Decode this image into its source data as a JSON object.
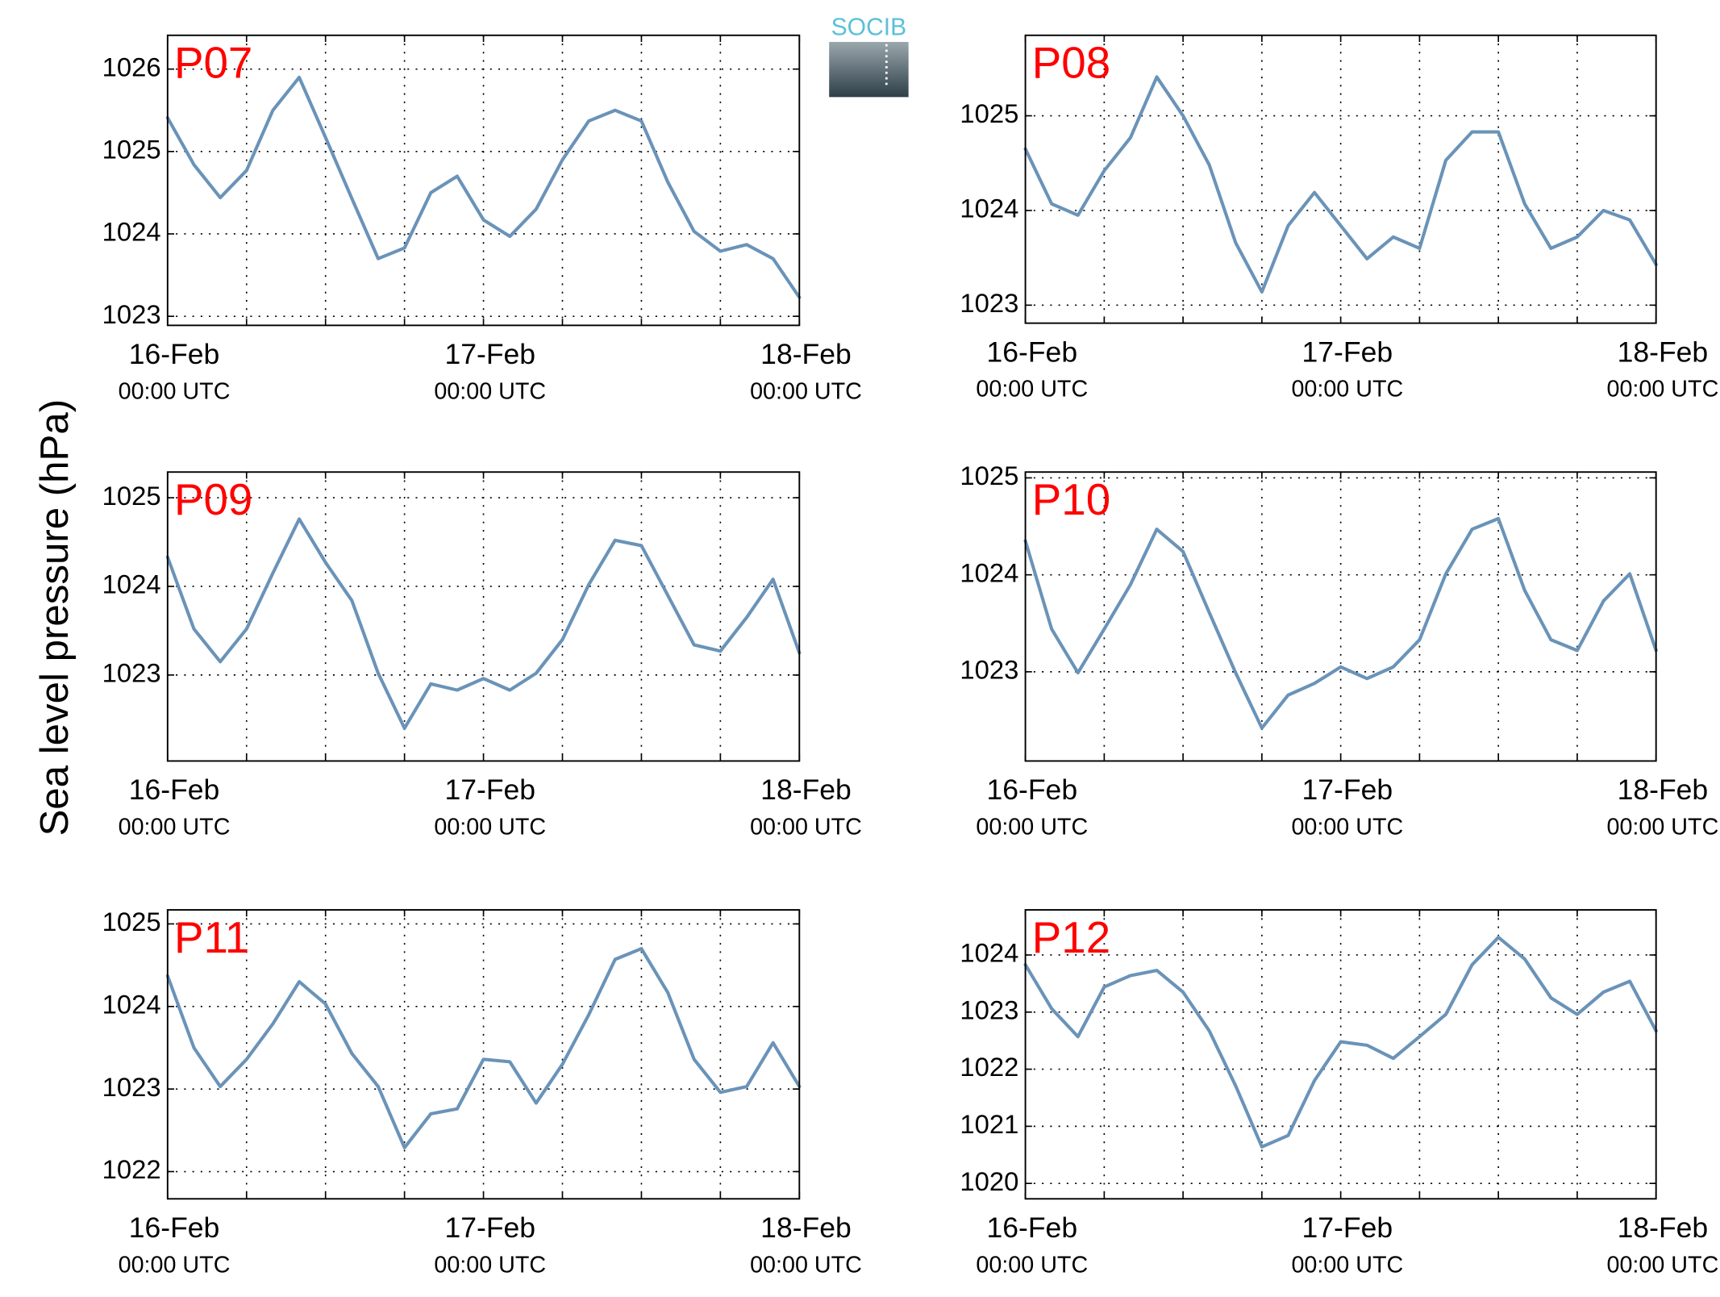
{
  "axis_label": "Sea level pressure (hPa)",
  "logo": "SOCIB",
  "chart_data": [
    {
      "type": "line",
      "title": "P07",
      "x": [
        0,
        2,
        4,
        6,
        8,
        10,
        12,
        14,
        16,
        18,
        20,
        22,
        24,
        26,
        28,
        30,
        32,
        34,
        36,
        38,
        40,
        42,
        44,
        46,
        48
      ],
      "series": [
        {
          "color": "#6a93b8",
          "values": [
            1025.41,
            1024.84,
            1024.44,
            1024.77,
            1025.5,
            1025.9,
            1025.17,
            1024.43,
            1023.7,
            1023.83,
            1024.5,
            1024.7,
            1024.17,
            1023.97,
            1024.3,
            1024.9,
            1025.37,
            1025.5,
            1025.37,
            1024.63,
            1024.03,
            1023.79,
            1023.87,
            1023.7,
            1023.23
          ]
        }
      ],
      "xlim": [
        0,
        48
      ],
      "xticks": [
        {
          "value": 0,
          "label": "16-Feb"
        },
        {
          "value": 24,
          "label": "17-Feb"
        },
        {
          "value": 48,
          "label": "18-Feb"
        }
      ],
      "xtick_sublabels": [
        "00:00 UTC",
        "00:00 UTC",
        "00:00 UTC"
      ],
      "xminor_ticks": [
        6,
        12,
        18,
        30,
        36,
        42
      ],
      "ylim": [
        1022.89,
        1026.41
      ],
      "yticks": [
        1023,
        1024,
        1025,
        1026
      ],
      "grid": true
    },
    {
      "type": "line",
      "title": "P08",
      "x": [
        0,
        2,
        4,
        6,
        8,
        10,
        12,
        14,
        16,
        18,
        20,
        22,
        24,
        26,
        28,
        30,
        32,
        34,
        36,
        38,
        40,
        42,
        44,
        46,
        48
      ],
      "series": [
        {
          "color": "#6a93b8",
          "values": [
            1024.65,
            1024.07,
            1023.95,
            1024.42,
            1024.77,
            1025.41,
            1025.0,
            1024.48,
            1023.66,
            1023.14,
            1023.84,
            1024.19,
            1023.84,
            1023.49,
            1023.72,
            1023.6,
            1024.53,
            1024.83,
            1024.83,
            1024.07,
            1023.6,
            1023.72,
            1024.0,
            1023.9,
            1023.43
          ]
        }
      ],
      "xlim": [
        0,
        48
      ],
      "xticks": [
        {
          "value": 0,
          "label": "16-Feb"
        },
        {
          "value": 24,
          "label": "17-Feb"
        },
        {
          "value": 48,
          "label": "18-Feb"
        }
      ],
      "xtick_sublabels": [
        "00:00 UTC",
        "00:00 UTC",
        "00:00 UTC"
      ],
      "xminor_ticks": [
        6,
        12,
        18,
        30,
        36,
        42
      ],
      "ylim": [
        1022.81,
        1025.85
      ],
      "yticks": [
        1023,
        1024,
        1025
      ],
      "grid": true
    },
    {
      "type": "line",
      "title": "P09",
      "x": [
        0,
        2,
        4,
        6,
        8,
        10,
        12,
        14,
        16,
        18,
        20,
        22,
        24,
        26,
        28,
        30,
        32,
        34,
        36,
        38,
        40,
        42,
        44,
        46,
        48
      ],
      "series": [
        {
          "color": "#6a93b8",
          "values": [
            1024.33,
            1023.52,
            1023.15,
            1023.52,
            1024.15,
            1024.76,
            1024.27,
            1023.84,
            1023.02,
            1022.4,
            1022.9,
            1022.83,
            1022.96,
            1022.83,
            1023.02,
            1023.4,
            1024.02,
            1024.52,
            1024.46,
            1023.9,
            1023.34,
            1023.27,
            1023.65,
            1024.08,
            1023.25
          ]
        }
      ],
      "xlim": [
        0,
        48
      ],
      "xticks": [
        {
          "value": 0,
          "label": "16-Feb"
        },
        {
          "value": 24,
          "label": "17-Feb"
        },
        {
          "value": 48,
          "label": "18-Feb"
        }
      ],
      "xtick_sublabels": [
        "00:00 UTC",
        "00:00 UTC",
        "00:00 UTC"
      ],
      "xminor_ticks": [
        6,
        12,
        18,
        30,
        36,
        42
      ],
      "ylim": [
        1022.03,
        1025.29
      ],
      "yticks": [
        1023,
        1024,
        1025
      ],
      "grid": true
    },
    {
      "type": "line",
      "title": "P10",
      "x": [
        0,
        2,
        4,
        6,
        8,
        10,
        12,
        14,
        16,
        18,
        20,
        22,
        24,
        26,
        28,
        30,
        32,
        34,
        36,
        38,
        40,
        42,
        44,
        46,
        48
      ],
      "series": [
        {
          "color": "#6a93b8",
          "values": [
            1024.35,
            1023.44,
            1022.99,
            1023.44,
            1023.9,
            1024.47,
            1024.24,
            1023.61,
            1022.99,
            1022.42,
            1022.76,
            1022.88,
            1023.05,
            1022.93,
            1023.05,
            1023.33,
            1024.01,
            1024.47,
            1024.58,
            1023.84,
            1023.33,
            1023.22,
            1023.73,
            1024.01,
            1023.22
          ]
        }
      ],
      "xlim": [
        0,
        48
      ],
      "xticks": [
        {
          "value": 0,
          "label": "16-Feb"
        },
        {
          "value": 24,
          "label": "17-Feb"
        },
        {
          "value": 48,
          "label": "18-Feb"
        }
      ],
      "xtick_sublabels": [
        "00:00 UTC",
        "00:00 UTC",
        "00:00 UTC"
      ],
      "xminor_ticks": [
        6,
        12,
        18,
        30,
        36,
        42
      ],
      "ylim": [
        1022.08,
        1025.06
      ],
      "yticks": [
        1023,
        1024,
        1025
      ],
      "grid": true
    },
    {
      "type": "line",
      "title": "P11",
      "x": [
        0,
        2,
        4,
        6,
        8,
        10,
        12,
        14,
        16,
        18,
        20,
        22,
        24,
        26,
        28,
        30,
        32,
        34,
        36,
        38,
        40,
        42,
        44,
        46,
        48
      ],
      "series": [
        {
          "color": "#6a93b8",
          "values": [
            1024.37,
            1023.5,
            1023.03,
            1023.36,
            1023.79,
            1024.3,
            1024.03,
            1023.43,
            1023.03,
            1022.29,
            1022.7,
            1022.76,
            1023.36,
            1023.33,
            1022.83,
            1023.3,
            1023.9,
            1024.57,
            1024.7,
            1024.17,
            1023.36,
            1022.96,
            1023.03,
            1023.56,
            1023.03
          ]
        }
      ],
      "xlim": [
        0,
        48
      ],
      "xticks": [
        {
          "value": 0,
          "label": "16-Feb"
        },
        {
          "value": 24,
          "label": "17-Feb"
        },
        {
          "value": 48,
          "label": "18-Feb"
        }
      ],
      "xtick_sublabels": [
        "00:00 UTC",
        "00:00 UTC",
        "00:00 UTC"
      ],
      "xminor_ticks": [
        6,
        12,
        18,
        30,
        36,
        42
      ],
      "ylim": [
        1021.67,
        1025.17
      ],
      "yticks": [
        1022,
        1023,
        1024,
        1025
      ],
      "grid": true
    },
    {
      "type": "line",
      "title": "P12",
      "x": [
        0,
        2,
        4,
        6,
        8,
        10,
        12,
        14,
        16,
        18,
        20,
        22,
        24,
        26,
        28,
        30,
        32,
        34,
        36,
        38,
        40,
        42,
        44,
        46,
        48
      ],
      "series": [
        {
          "color": "#6a93b8",
          "values": [
            1023.83,
            1023.06,
            1022.57,
            1023.44,
            1023.64,
            1023.73,
            1023.35,
            1022.67,
            1021.71,
            1020.64,
            1020.84,
            1021.8,
            1022.48,
            1022.42,
            1022.19,
            1022.57,
            1022.96,
            1023.83,
            1024.31,
            1023.93,
            1023.25,
            1022.96,
            1023.35,
            1023.54,
            1022.67
          ]
        }
      ],
      "xlim": [
        0,
        48
      ],
      "xticks": [
        {
          "value": 0,
          "label": "16-Feb"
        },
        {
          "value": 24,
          "label": "17-Feb"
        },
        {
          "value": 48,
          "label": "18-Feb"
        }
      ],
      "xtick_sublabels": [
        "00:00 UTC",
        "00:00 UTC",
        "00:00 UTC"
      ],
      "xminor_ticks": [
        6,
        12,
        18,
        30,
        36,
        42
      ],
      "ylim": [
        1019.73,
        1024.79
      ],
      "yticks": [
        1020,
        1021,
        1022,
        1023,
        1024
      ],
      "grid": true
    }
  ]
}
